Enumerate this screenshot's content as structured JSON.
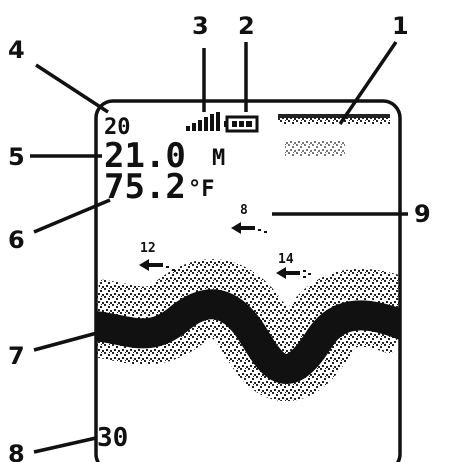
{
  "callouts": [
    "1",
    "2",
    "3",
    "4",
    "5",
    "6",
    "7",
    "8",
    "9"
  ],
  "screen": {
    "range_top": "20",
    "depth": "21.0",
    "depth_unit": "M",
    "temperature": "75.2",
    "temp_unit": "°F",
    "fish": [
      "8",
      "12",
      "14"
    ],
    "range_bottom": "30"
  }
}
